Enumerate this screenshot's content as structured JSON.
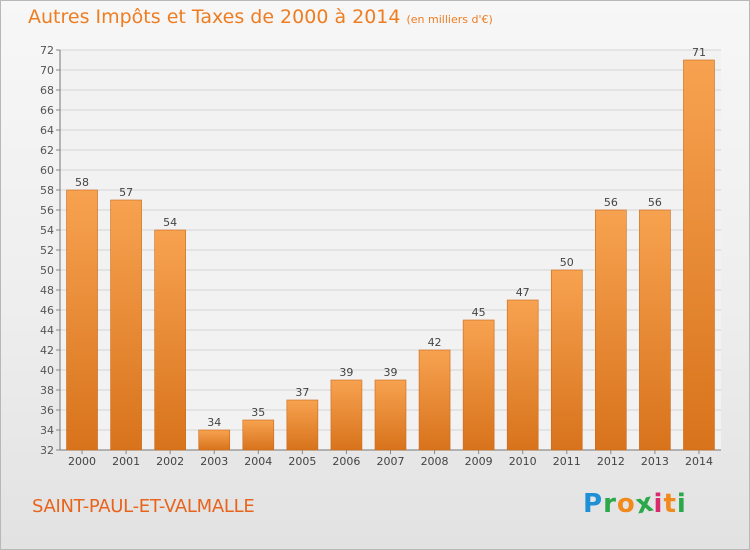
{
  "chart_data": {
    "type": "bar",
    "title": "Autres Impôts et Taxes de 2000 à 2014",
    "subtitle": "(en milliers d'€)",
    "categories": [
      "2000",
      "2001",
      "2002",
      "2003",
      "2004",
      "2005",
      "2006",
      "2007",
      "2008",
      "2009",
      "2010",
      "2011",
      "2012",
      "2013",
      "2014"
    ],
    "values": [
      58,
      57,
      54,
      34,
      35,
      37,
      39,
      39,
      42,
      45,
      47,
      50,
      56,
      56,
      71
    ],
    "ylim": [
      32,
      72
    ],
    "yticks": [
      32,
      34,
      36,
      38,
      40,
      42,
      44,
      46,
      48,
      50,
      52,
      54,
      56,
      58,
      60,
      62,
      64,
      66,
      68,
      70,
      72
    ],
    "grid": true,
    "bar_color_top": "#f7a250",
    "bar_color_bottom": "#d8731c"
  },
  "footer": {
    "town": "SAINT-PAUL-ET-VALMALLE",
    "logo_letters": [
      "P",
      "r",
      "o",
      "x",
      "i",
      "t",
      "i"
    ],
    "logo_colors": [
      "#1f8fd6",
      "#2aa84a",
      "#f08a1c",
      "#2aa84a",
      "#d92b6b",
      "#f08a1c",
      "#2aa84a"
    ]
  }
}
